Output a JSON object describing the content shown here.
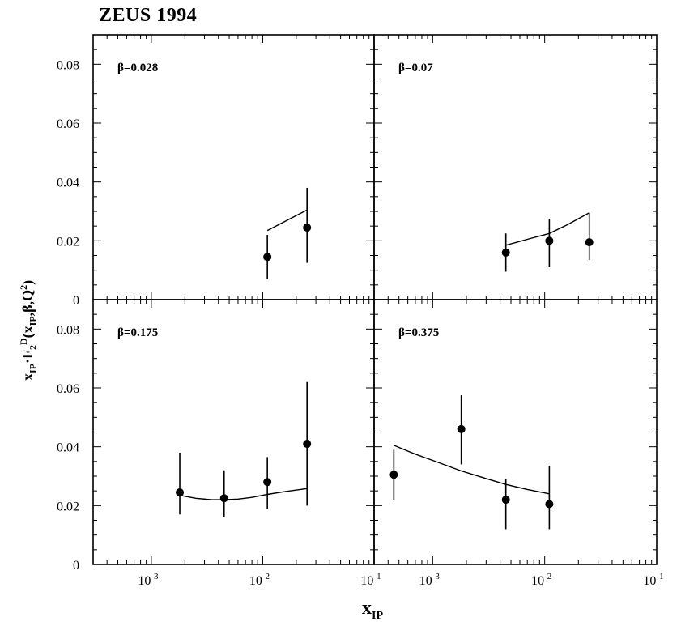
{
  "figure": {
    "title": "ZEUS 1994"
  },
  "chart_data": [
    {
      "type": "scatter",
      "panel_label": "β=0.028",
      "series": [
        {
          "kind": "data",
          "x": [
            0.011,
            0.025
          ],
          "y": [
            0.0145,
            0.0245
          ],
          "y_err_low": [
            0.007,
            0.0125
          ],
          "y_err_high": [
            0.022,
            0.038
          ]
        },
        {
          "kind": "fit",
          "x": [
            0.011,
            0.025
          ],
          "y": [
            0.0235,
            0.0305
          ]
        }
      ]
    },
    {
      "type": "scatter",
      "panel_label": "β=0.07",
      "series": [
        {
          "kind": "data",
          "x": [
            0.0045,
            0.011,
            0.025
          ],
          "y": [
            0.016,
            0.02,
            0.0195
          ],
          "y_err_low": [
            0.0095,
            0.011,
            0.0135
          ],
          "y_err_high": [
            0.0225,
            0.0275,
            0.0295
          ]
        },
        {
          "kind": "fit",
          "x": [
            0.0045,
            0.007,
            0.011,
            0.016,
            0.025
          ],
          "y": [
            0.0185,
            0.0205,
            0.0225,
            0.0255,
            0.0295
          ]
        }
      ]
    },
    {
      "type": "scatter",
      "panel_label": "β=0.175",
      "series": [
        {
          "kind": "data",
          "x": [
            0.0018,
            0.0045,
            0.011,
            0.025
          ],
          "y": [
            0.0245,
            0.0225,
            0.028,
            0.041
          ],
          "y_err_low": [
            0.017,
            0.016,
            0.019,
            0.02
          ],
          "y_err_high": [
            0.038,
            0.032,
            0.0365,
            0.062
          ]
        },
        {
          "kind": "fit",
          "x": [
            0.0018,
            0.0025,
            0.0035,
            0.0045,
            0.006,
            0.008,
            0.011,
            0.016,
            0.025
          ],
          "y": [
            0.0235,
            0.0225,
            0.022,
            0.022,
            0.0222,
            0.0228,
            0.0238,
            0.0248,
            0.0258
          ]
        }
      ]
    },
    {
      "type": "scatter",
      "panel_label": "β=0.375",
      "series": [
        {
          "kind": "data",
          "x": [
            0.00045,
            0.0018,
            0.0045,
            0.011
          ],
          "y": [
            0.0305,
            0.046,
            0.022,
            0.0205
          ],
          "y_err_low": [
            0.022,
            0.034,
            0.012,
            0.012
          ],
          "y_err_high": [
            0.039,
            0.0575,
            0.029,
            0.0335
          ]
        },
        {
          "kind": "fit",
          "x": [
            0.00045,
            0.0007,
            0.0011,
            0.0018,
            0.003,
            0.0045,
            0.007,
            0.011
          ],
          "y": [
            0.0405,
            0.0375,
            0.0348,
            0.0318,
            0.0292,
            0.0272,
            0.0255,
            0.024
          ]
        }
      ]
    }
  ],
  "axes": {
    "x_scale": "log",
    "xlim": [
      0.0003,
      0.1
    ],
    "ylim": [
      0,
      0.09
    ],
    "x_tick_labels": [
      {
        "base": "10",
        "exp": "-3"
      },
      {
        "base": "10",
        "exp": "-2"
      },
      {
        "base": "10",
        "exp": "-1"
      }
    ],
    "y_tick_labels": [
      "0",
      "0.02",
      "0.04",
      "0.06",
      "0.08"
    ],
    "ylabel": {
      "p1": "x",
      "p2": "IP",
      "p3": "·F",
      "p4": "2",
      "p5": "D",
      "p6": "(x",
      "p7": "IP",
      "p8": ",β,Q",
      "p9": "2",
      "p10": ")"
    },
    "xlabel": {
      "main": "x",
      "sub": "IP"
    }
  }
}
